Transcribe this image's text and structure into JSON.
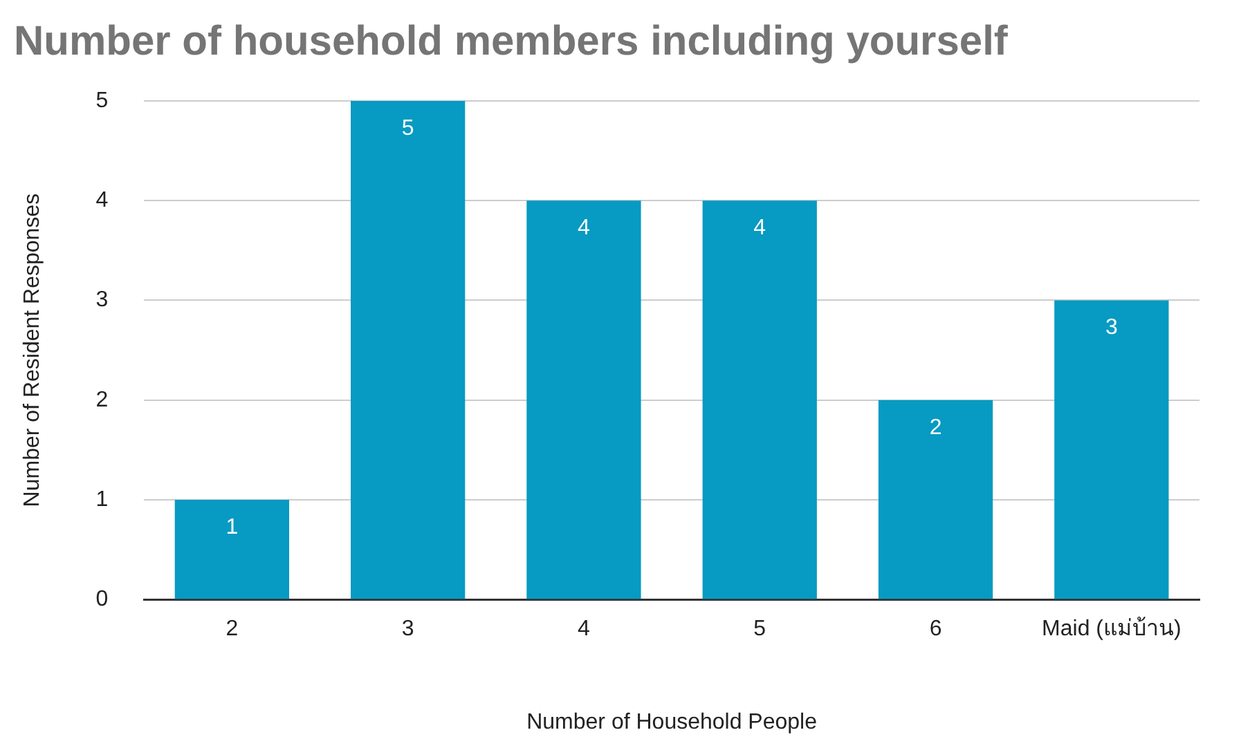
{
  "chart_data": {
    "type": "bar",
    "title": "Number of household members including yourself",
    "xlabel": "Number of Household People",
    "ylabel": "Number of Resident Responses",
    "categories": [
      "2",
      "3",
      "4",
      "5",
      "6",
      "Maid (แม่บ้าน)"
    ],
    "values": [
      1,
      5,
      4,
      4,
      2,
      3
    ],
    "color": "#079ac2",
    "ylim": [
      0,
      5
    ],
    "yticks": [
      0,
      1,
      2,
      3,
      4,
      5
    ],
    "grid": "y",
    "data_labels": true,
    "legend": false
  }
}
